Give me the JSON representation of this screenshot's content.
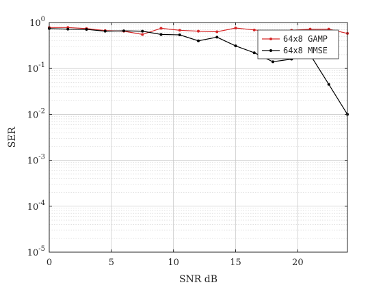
{
  "chart_data": {
    "type": "line",
    "title": "",
    "xlabel": "SNR dB",
    "ylabel": "SER",
    "xlim": [
      0,
      24
    ],
    "ylim": [
      1e-05,
      1
    ],
    "yscale": "log",
    "grid": true,
    "minor_grid": true,
    "legend_position": "top-right",
    "x_ticks": [
      0,
      5,
      10,
      15,
      20
    ],
    "x_tick_labels": [
      "0",
      "5",
      "10",
      "15",
      "20"
    ],
    "y_ticks": [
      1,
      0.1,
      0.01,
      0.001,
      0.0001,
      1e-05
    ],
    "y_tick_labels": [
      {
        "base": "10",
        "exp": "0"
      },
      {
        "base": "10",
        "exp": "-1"
      },
      {
        "base": "10",
        "exp": "-2"
      },
      {
        "base": "10",
        "exp": "-3"
      },
      {
        "base": "10",
        "exp": "-4"
      },
      {
        "base": "10",
        "exp": "-5"
      }
    ],
    "series": [
      {
        "name": "64x8 GAMP",
        "color": "#d62728",
        "x": [
          0,
          1.5,
          3,
          4.5,
          6,
          7.5,
          9,
          10.5,
          12,
          13.5,
          15,
          16.5,
          18,
          19.5,
          21,
          22.5,
          24
        ],
        "y": [
          0.78,
          0.78,
          0.74,
          0.67,
          0.65,
          0.55,
          0.75,
          0.68,
          0.65,
          0.63,
          0.76,
          0.69,
          0.64,
          0.68,
          0.72,
          0.72,
          0.58
        ]
      },
      {
        "name": "64x8 MMSE",
        "color": "#000000",
        "x": [
          0,
          1.5,
          3,
          4.5,
          6,
          7.5,
          9,
          10.5,
          12,
          13.5,
          15,
          16.5,
          18,
          19.5,
          21,
          22.5,
          24
        ],
        "y": [
          0.74,
          0.72,
          0.71,
          0.65,
          0.66,
          0.65,
          0.55,
          0.54,
          0.4,
          0.48,
          0.31,
          0.22,
          0.14,
          0.16,
          0.2,
          0.045,
          0.01
        ]
      }
    ]
  }
}
